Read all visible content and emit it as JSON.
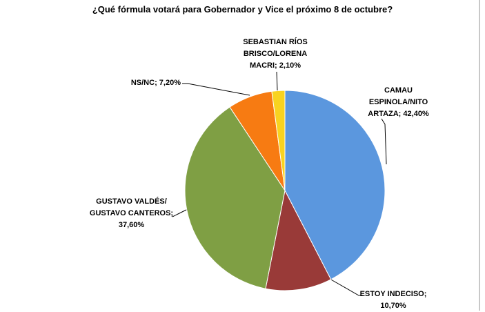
{
  "chart_data": {
    "type": "pie",
    "title": "¿Qué fórmula votará para Gobernador y Vice el próximo 8 de octubre?",
    "categories": [
      "CAMAU ESPINOLA/NITO ARTAZA;",
      "ESTOY INDECISO;",
      "GUSTAVO VALDÉS/ GUSTAVO CANTEROS;",
      "NS/NC;",
      "SEBASTIAN RÍOS BRISCO/LORENA MACRI;"
    ],
    "values": [
      42.4,
      10.7,
      37.6,
      7.2,
      2.1
    ],
    "value_labels": [
      "42,40%",
      "10,70%",
      "37,60%",
      "7,20%",
      "2,10%"
    ],
    "colors": [
      "#5b97de",
      "#993a38",
      "#7f9f44",
      "#f77b12",
      "#f8d320"
    ]
  }
}
